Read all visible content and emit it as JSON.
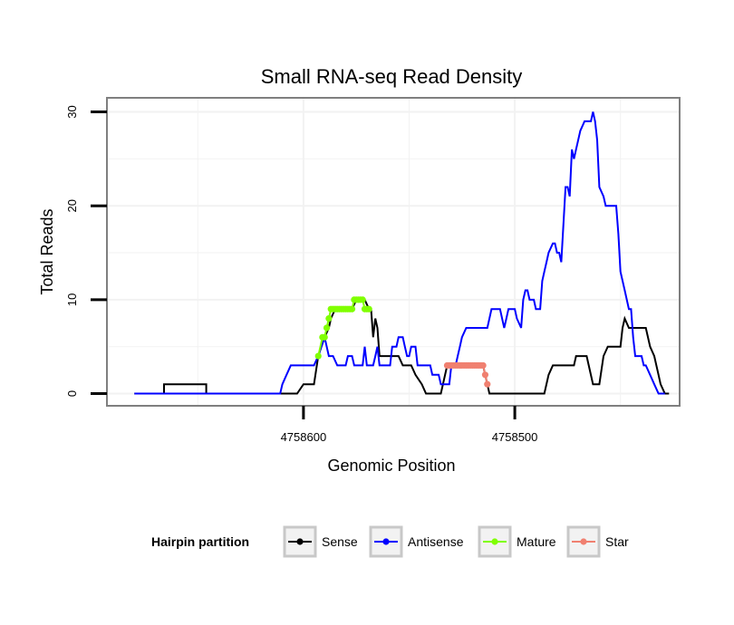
{
  "chart_data": {
    "type": "line",
    "title": "Small RNA-seq Read Density",
    "xlabel": "Genomic Position",
    "ylabel": "Total Reads",
    "x_reversed": true,
    "xlim": [
      4758693,
      4758422
    ],
    "ylim": [
      -1.3,
      31.5
    ],
    "x_ticks": [
      4758600,
      4758500
    ],
    "x_tick_labels": [
      "4758600",
      "4758500"
    ],
    "y_ticks": [
      0,
      10,
      20,
      30
    ],
    "y_tick_labels": [
      "0",
      "10",
      "20",
      "30"
    ],
    "grid": true,
    "legend": {
      "title": "Hairpin partition",
      "position": "bottom",
      "entries": [
        "Sense",
        "Antisense",
        "Mature",
        "Star"
      ]
    },
    "series": [
      {
        "name": "Sense",
        "color": "#000000",
        "markers": false,
        "points": [
          [
            4758680,
            0
          ],
          [
            4758666,
            0
          ],
          [
            4758666,
            1
          ],
          [
            4758646,
            1
          ],
          [
            4758646,
            0
          ],
          [
            4758603,
            0
          ],
          [
            4758600,
            1
          ],
          [
            4758595,
            1
          ],
          [
            4758593,
            4
          ],
          [
            4758590,
            6
          ],
          [
            4758588,
            7
          ],
          [
            4758587,
            8
          ],
          [
            4758585,
            9
          ],
          [
            4758577,
            9
          ],
          [
            4758575,
            10
          ],
          [
            4758571,
            10
          ],
          [
            4758569,
            9
          ],
          [
            4758568,
            9
          ],
          [
            4758567,
            6
          ],
          [
            4758566,
            8
          ],
          [
            4758565,
            7
          ],
          [
            4758564,
            4
          ],
          [
            4758555,
            4
          ],
          [
            4758553,
            3
          ],
          [
            4758549,
            3
          ],
          [
            4758547,
            2
          ],
          [
            4758544,
            1
          ],
          [
            4758542,
            0
          ],
          [
            4758535,
            0
          ],
          [
            4758532,
            3
          ],
          [
            4758515,
            3
          ],
          [
            4758514,
            2
          ],
          [
            4758513,
            1
          ],
          [
            4758512,
            0
          ],
          [
            4758486,
            0
          ],
          [
            4758484,
            2
          ],
          [
            4758482,
            3
          ],
          [
            4758472,
            3
          ],
          [
            4758471,
            4
          ],
          [
            4758466,
            4
          ],
          [
            4758465,
            3
          ],
          [
            4758463,
            1
          ],
          [
            4758460,
            1
          ],
          [
            4758458,
            4
          ],
          [
            4758456,
            5
          ],
          [
            4758450,
            5
          ],
          [
            4758449,
            7
          ],
          [
            4758448,
            8
          ],
          [
            4758446,
            7
          ],
          [
            4758438,
            7
          ],
          [
            4758436,
            5
          ],
          [
            4758434,
            4
          ],
          [
            4758432,
            2
          ],
          [
            4758431,
            1
          ],
          [
            4758429,
            0
          ],
          [
            4758427,
            0
          ]
        ]
      },
      {
        "name": "Antisense",
        "color": "#0000ff",
        "markers": false,
        "points": [
          [
            4758680,
            0
          ],
          [
            4758611,
            0
          ],
          [
            4758610,
            1
          ],
          [
            4758608,
            2
          ],
          [
            4758606,
            3
          ],
          [
            4758595,
            3
          ],
          [
            4758593,
            4
          ],
          [
            4758590,
            6
          ],
          [
            4758588,
            4
          ],
          [
            4758586,
            4
          ],
          [
            4758584,
            3
          ],
          [
            4758580,
            3
          ],
          [
            4758579,
            4
          ],
          [
            4758577,
            4
          ],
          [
            4758576,
            3
          ],
          [
            4758572,
            3
          ],
          [
            4758571,
            5
          ],
          [
            4758570,
            3
          ],
          [
            4758567,
            3
          ],
          [
            4758566,
            4
          ],
          [
            4758565,
            5
          ],
          [
            4758564,
            3
          ],
          [
            4758559,
            3
          ],
          [
            4758558,
            5
          ],
          [
            4758556,
            5
          ],
          [
            4758555,
            6
          ],
          [
            4758553,
            6
          ],
          [
            4758552,
            5
          ],
          [
            4758551,
            4
          ],
          [
            4758550,
            4
          ],
          [
            4758549,
            5
          ],
          [
            4758547,
            5
          ],
          [
            4758546,
            3
          ],
          [
            4758540,
            3
          ],
          [
            4758539,
            2
          ],
          [
            4758536,
            2
          ],
          [
            4758535,
            1
          ],
          [
            4758531,
            1
          ],
          [
            4758530,
            3
          ],
          [
            4758528,
            3
          ],
          [
            4758527,
            4
          ],
          [
            4758526,
            5
          ],
          [
            4758525,
            6
          ],
          [
            4758523,
            7
          ],
          [
            4758513,
            7
          ],
          [
            4758512,
            8
          ],
          [
            4758511,
            9
          ],
          [
            4758507,
            9
          ],
          [
            4758506,
            8
          ],
          [
            4758505,
            7
          ],
          [
            4758504,
            8
          ],
          [
            4758503,
            9
          ],
          [
            4758500,
            9
          ],
          [
            4758499,
            8
          ],
          [
            4758497,
            7
          ],
          [
            4758496,
            10
          ],
          [
            4758495,
            11
          ],
          [
            4758494,
            11
          ],
          [
            4758493,
            10
          ],
          [
            4758491,
            10
          ],
          [
            4758490,
            9
          ],
          [
            4758489,
            9
          ],
          [
            4758488,
            9
          ],
          [
            4758487,
            12
          ],
          [
            4758486,
            13
          ],
          [
            4758485,
            14
          ],
          [
            4758484,
            15
          ],
          [
            4758482,
            16
          ],
          [
            4758481,
            16
          ],
          [
            4758480,
            15
          ],
          [
            4758479,
            15
          ],
          [
            4758478,
            14
          ],
          [
            4758476,
            22
          ],
          [
            4758475,
            22
          ],
          [
            4758474,
            21
          ],
          [
            4758473,
            26
          ],
          [
            4758472,
            25
          ],
          [
            4758471,
            26
          ],
          [
            4758469,
            28
          ],
          [
            4758467,
            29
          ],
          [
            4758464,
            29
          ],
          [
            4758463,
            30
          ],
          [
            4758462,
            29
          ],
          [
            4758461,
            27
          ],
          [
            4758460,
            22
          ],
          [
            4758458,
            21
          ],
          [
            4758457,
            20
          ],
          [
            4758452,
            20
          ],
          [
            4758451,
            17
          ],
          [
            4758450,
            13
          ],
          [
            4758448,
            11
          ],
          [
            4758446,
            9
          ],
          [
            4758445,
            9
          ],
          [
            4758444,
            6
          ],
          [
            4758443,
            4
          ],
          [
            4758440,
            4
          ],
          [
            4758439,
            3
          ],
          [
            4758438,
            3
          ],
          [
            4758436,
            2
          ],
          [
            4758434,
            1
          ],
          [
            4758432,
            0
          ],
          [
            4758429,
            0
          ]
        ]
      },
      {
        "name": "Mature",
        "color": "#80ff00",
        "markers": true,
        "points": [
          [
            4758593,
            4
          ],
          [
            4758591,
            6
          ],
          [
            4758590,
            6
          ],
          [
            4758589,
            7
          ],
          [
            4758588,
            8
          ],
          [
            4758587,
            9
          ],
          [
            4758586,
            9
          ],
          [
            4758585,
            9
          ],
          [
            4758584,
            9
          ],
          [
            4758583,
            9
          ],
          [
            4758582,
            9
          ],
          [
            4758581,
            9
          ],
          [
            4758580,
            9
          ],
          [
            4758579,
            9
          ],
          [
            4758578,
            9
          ],
          [
            4758577,
            9
          ],
          [
            4758576,
            10
          ],
          [
            4758575,
            10
          ],
          [
            4758574,
            10
          ],
          [
            4758573,
            10
          ],
          [
            4758572,
            10
          ],
          [
            4758571,
            9
          ],
          [
            4758570,
            9
          ],
          [
            4758569,
            9
          ]
        ]
      },
      {
        "name": "Star",
        "color": "#f08070",
        "markers": true,
        "points": [
          [
            4758532,
            3
          ],
          [
            4758531,
            3
          ],
          [
            4758530,
            3
          ],
          [
            4758529,
            3
          ],
          [
            4758528,
            3
          ],
          [
            4758527,
            3
          ],
          [
            4758526,
            3
          ],
          [
            4758525,
            3
          ],
          [
            4758524,
            3
          ],
          [
            4758523,
            3
          ],
          [
            4758522,
            3
          ],
          [
            4758521,
            3
          ],
          [
            4758520,
            3
          ],
          [
            4758519,
            3
          ],
          [
            4758518,
            3
          ],
          [
            4758517,
            3
          ],
          [
            4758516,
            3
          ],
          [
            4758515,
            3
          ],
          [
            4758514,
            2
          ],
          [
            4758513,
            1
          ]
        ]
      }
    ]
  }
}
